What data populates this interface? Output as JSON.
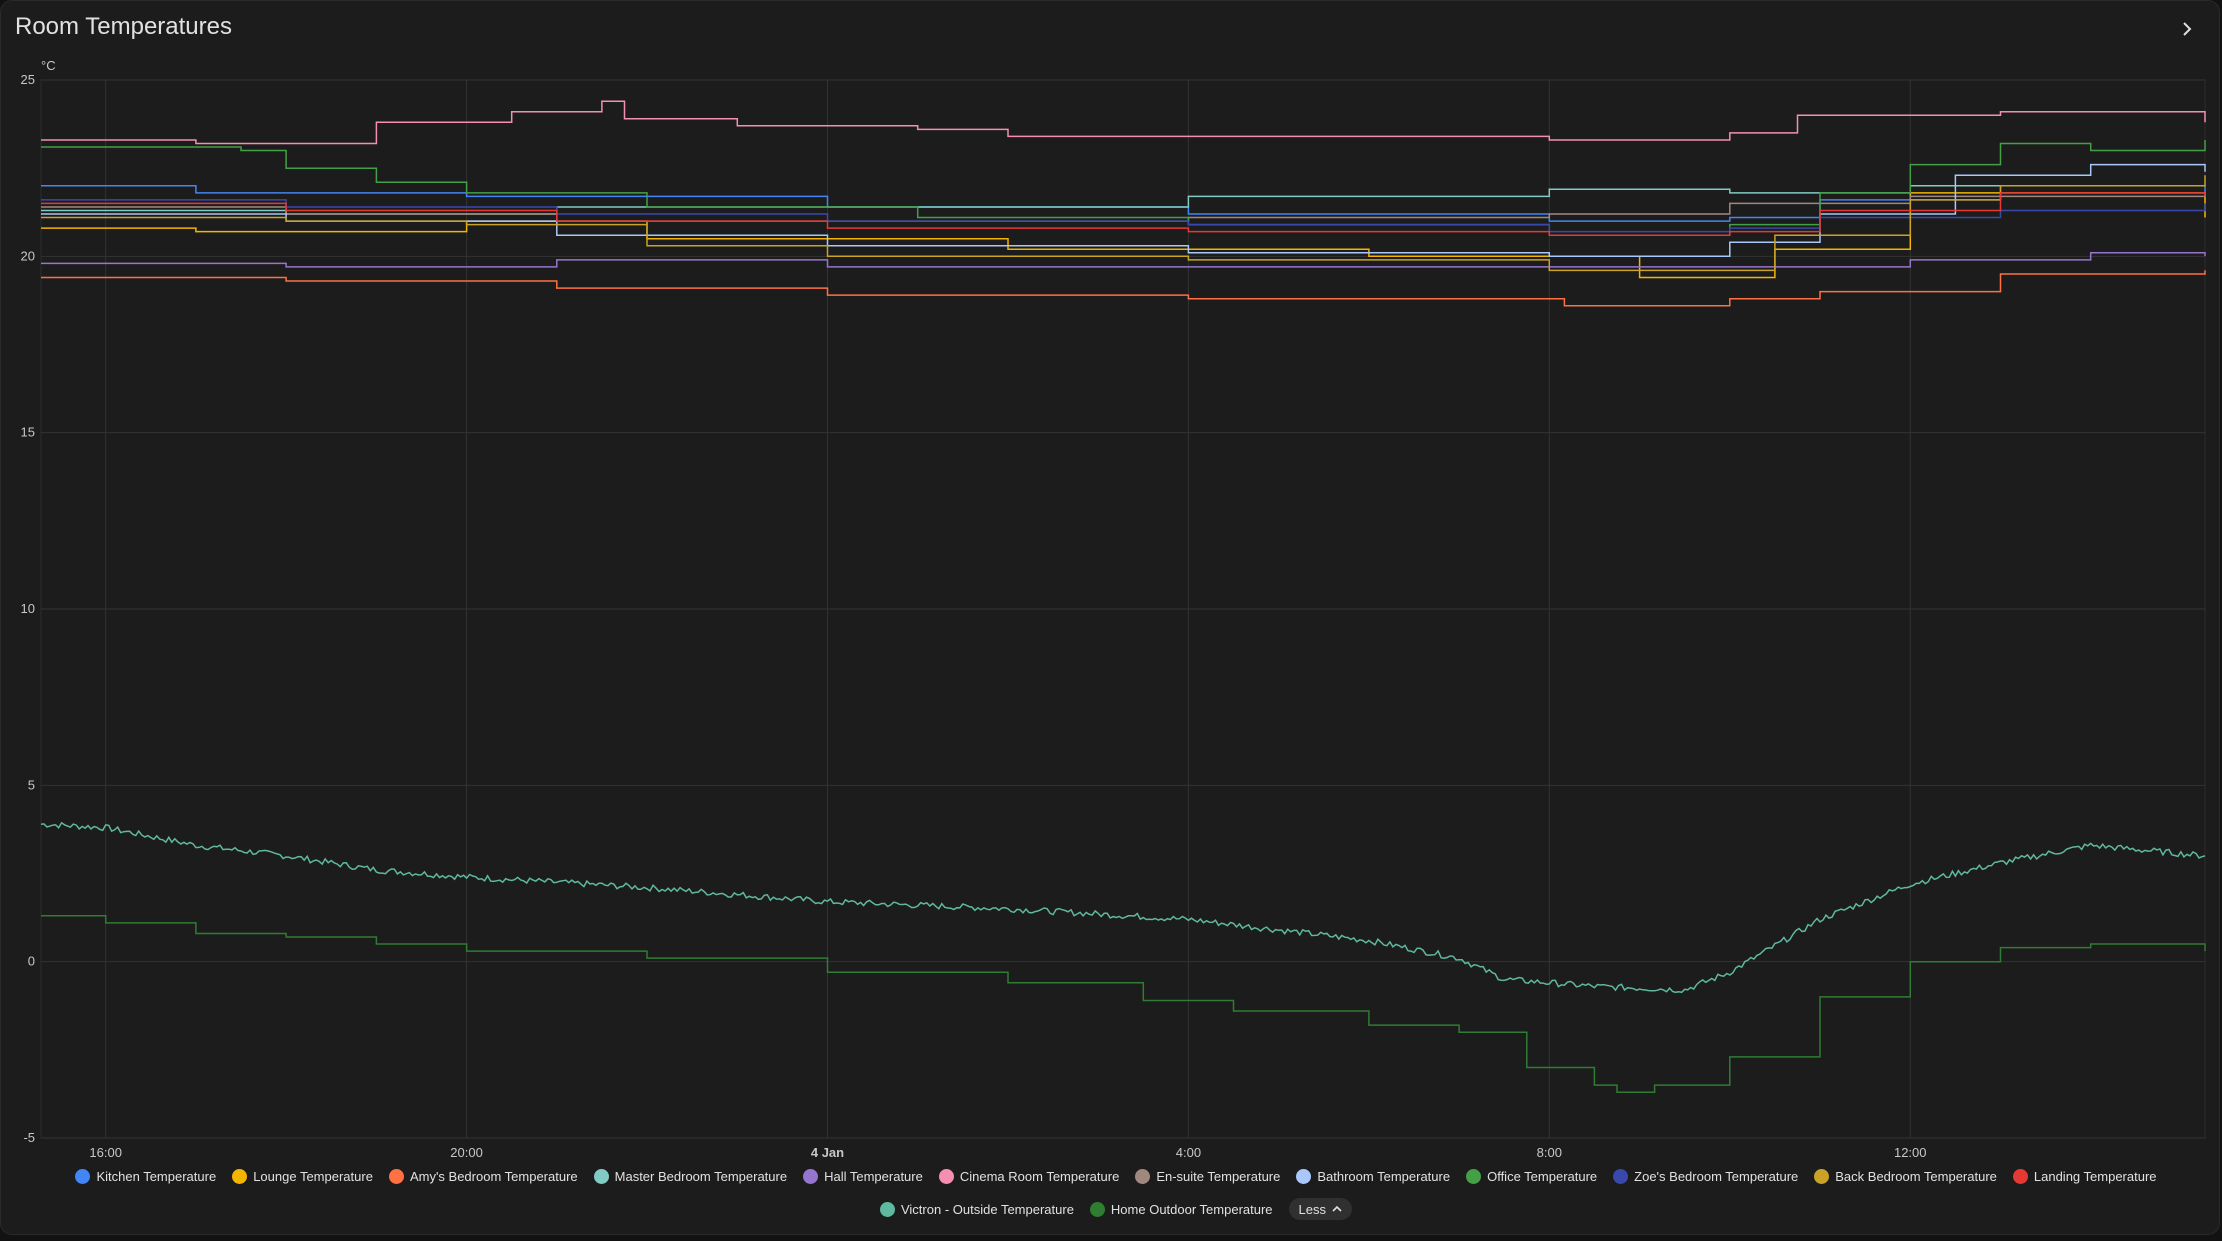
{
  "card": {
    "title": "Room Temperatures",
    "more_icon": "chevron-right-icon",
    "legend_toggle_label": "Less",
    "legend_toggle_icon": "chevron-up-icon"
  },
  "chart_data": {
    "type": "line",
    "step": true,
    "ylabel": "°C",
    "ylim": [
      -5,
      25
    ],
    "yticks": [
      "25",
      "20",
      "15",
      "10",
      "5",
      "0",
      "-5"
    ],
    "xlim": [
      "2024-01-03 15:17",
      "2024-01-04 15:16"
    ],
    "xticks": [
      {
        "t": "2024-01-03 16:00",
        "label": "16:00",
        "bold": false
      },
      {
        "t": "2024-01-03 20:00",
        "label": "20:00",
        "bold": false
      },
      {
        "t": "2024-01-04 00:00",
        "label": "4 Jan",
        "bold": true
      },
      {
        "t": "2024-01-04 04:00",
        "label": "4:00",
        "bold": false
      },
      {
        "t": "2024-01-04 08:00",
        "label": "8:00",
        "bold": false
      },
      {
        "t": "2024-01-04 12:00",
        "label": "12:00",
        "bold": false
      }
    ],
    "grid": true,
    "legend_position": "bottom",
    "series": [
      {
        "name": "Kitchen Temperature",
        "color": "#4285f4",
        "points": [
          [
            "2024-01-03 15:17",
            22.0
          ],
          [
            "2024-01-03 17:00",
            21.8
          ],
          [
            "2024-01-03 20:00",
            21.7
          ],
          [
            "2024-01-04 00:00",
            21.4
          ],
          [
            "2024-01-04 04:00",
            21.2
          ],
          [
            "2024-01-04 08:00",
            21.0
          ],
          [
            "2024-01-04 10:00",
            21.1
          ],
          [
            "2024-01-04 11:00",
            21.6
          ],
          [
            "2024-01-04 13:00",
            22.0
          ],
          [
            "2024-01-04 15:16",
            21.8
          ]
        ]
      },
      {
        "name": "Lounge Temperature",
        "color": "#f4b400",
        "points": [
          [
            "2024-01-03 15:17",
            20.8
          ],
          [
            "2024-01-03 17:00",
            20.7
          ],
          [
            "2024-01-03 20:00",
            21.0
          ],
          [
            "2024-01-03 22:00",
            20.5
          ],
          [
            "2024-01-04 02:00",
            20.2
          ],
          [
            "2024-01-04 06:00",
            20.0
          ],
          [
            "2024-01-04 09:00",
            19.4
          ],
          [
            "2024-01-04 10:30",
            20.2
          ],
          [
            "2024-01-04 12:00",
            21.8
          ],
          [
            "2024-01-04 15:16",
            21.1
          ]
        ]
      },
      {
        "name": "Amy's Bedroom Temperature",
        "color": "#ff7043",
        "points": [
          [
            "2024-01-03 15:17",
            19.4
          ],
          [
            "2024-01-03 18:00",
            19.3
          ],
          [
            "2024-01-03 21:00",
            19.1
          ],
          [
            "2024-01-04 00:00",
            18.9
          ],
          [
            "2024-01-04 04:00",
            18.8
          ],
          [
            "2024-01-04 07:00",
            18.8
          ],
          [
            "2024-01-04 08:10",
            18.6
          ],
          [
            "2024-01-04 10:00",
            18.8
          ],
          [
            "2024-01-04 11:00",
            19.0
          ],
          [
            "2024-01-04 13:00",
            19.5
          ],
          [
            "2024-01-04 15:16",
            19.6
          ]
        ]
      },
      {
        "name": "Master Bedroom Temperature",
        "color": "#80cbc4",
        "points": [
          [
            "2024-01-03 15:17",
            21.3
          ],
          [
            "2024-01-03 18:00",
            21.2
          ],
          [
            "2024-01-03 21:00",
            21.4
          ],
          [
            "2024-01-04 00:00",
            21.4
          ],
          [
            "2024-01-04 04:00",
            21.7
          ],
          [
            "2024-01-04 08:00",
            21.9
          ],
          [
            "2024-01-04 10:00",
            21.8
          ],
          [
            "2024-01-04 12:00",
            22.0
          ],
          [
            "2024-01-04 15:16",
            22.0
          ]
        ]
      },
      {
        "name": "Hall Temperature",
        "color": "#9575cd",
        "points": [
          [
            "2024-01-03 15:17",
            19.8
          ],
          [
            "2024-01-03 18:00",
            19.7
          ],
          [
            "2024-01-03 21:00",
            19.9
          ],
          [
            "2024-01-04 00:00",
            19.7
          ],
          [
            "2024-01-04 04:00",
            19.7
          ],
          [
            "2024-01-04 08:00",
            19.7
          ],
          [
            "2024-01-04 10:00",
            19.7
          ],
          [
            "2024-01-04 12:00",
            19.9
          ],
          [
            "2024-01-04 14:00",
            20.1
          ],
          [
            "2024-01-04 15:16",
            20.0
          ]
        ]
      },
      {
        "name": "Cinema Room Temperature",
        "color": "#f48fb1",
        "points": [
          [
            "2024-01-03 15:17",
            23.3
          ],
          [
            "2024-01-03 17:00",
            23.2
          ],
          [
            "2024-01-03 18:45",
            23.2
          ],
          [
            "2024-01-03 19:00",
            23.8
          ],
          [
            "2024-01-03 20:30",
            24.1
          ],
          [
            "2024-01-03 21:30",
            24.4
          ],
          [
            "2024-01-03 21:45",
            23.9
          ],
          [
            "2024-01-03 23:00",
            23.7
          ],
          [
            "2024-01-04 01:00",
            23.6
          ],
          [
            "2024-01-04 02:00",
            23.4
          ],
          [
            "2024-01-04 06:00",
            23.4
          ],
          [
            "2024-01-04 08:00",
            23.3
          ],
          [
            "2024-01-04 10:00",
            23.5
          ],
          [
            "2024-01-04 10:45",
            24.0
          ],
          [
            "2024-01-04 12:00",
            24.0
          ],
          [
            "2024-01-04 13:00",
            24.1
          ],
          [
            "2024-01-04 15:16",
            23.8
          ]
        ]
      },
      {
        "name": "En-suite Temperature",
        "color": "#a1887f",
        "points": [
          [
            "2024-01-03 15:17",
            21.4
          ],
          [
            "2024-01-03 18:00",
            21.2
          ],
          [
            "2024-01-03 21:00",
            21.0
          ],
          [
            "2024-01-04 00:00",
            21.0
          ],
          [
            "2024-01-04 04:00",
            21.1
          ],
          [
            "2024-01-04 08:00",
            21.2
          ],
          [
            "2024-01-04 10:00",
            21.5
          ],
          [
            "2024-01-04 12:00",
            21.7
          ],
          [
            "2024-01-04 15:16",
            21.8
          ]
        ]
      },
      {
        "name": "Bathroom Temperature",
        "color": "#a8c7fa",
        "points": [
          [
            "2024-01-03 15:17",
            21.2
          ],
          [
            "2024-01-03 18:00",
            21.0
          ],
          [
            "2024-01-03 21:00",
            20.6
          ],
          [
            "2024-01-04 00:00",
            20.3
          ],
          [
            "2024-01-04 04:00",
            20.1
          ],
          [
            "2024-01-04 08:00",
            20.0
          ],
          [
            "2024-01-04 10:00",
            20.4
          ],
          [
            "2024-01-04 11:00",
            21.2
          ],
          [
            "2024-01-04 12:30",
            22.3
          ],
          [
            "2024-01-04 14:00",
            22.6
          ],
          [
            "2024-01-04 15:16",
            22.4
          ]
        ]
      },
      {
        "name": "Office Temperature",
        "color": "#43a047",
        "points": [
          [
            "2024-01-03 15:17",
            23.1
          ],
          [
            "2024-01-03 17:30",
            23.0
          ],
          [
            "2024-01-03 18:00",
            22.5
          ],
          [
            "2024-01-03 19:00",
            22.1
          ],
          [
            "2024-01-03 20:00",
            21.8
          ],
          [
            "2024-01-03 22:00",
            21.4
          ],
          [
            "2024-01-04 01:00",
            21.1
          ],
          [
            "2024-01-04 04:00",
            20.9
          ],
          [
            "2024-01-04 08:00",
            20.6
          ],
          [
            "2024-01-04 10:00",
            20.9
          ],
          [
            "2024-01-04 11:00",
            21.8
          ],
          [
            "2024-01-04 12:00",
            22.6
          ],
          [
            "2024-01-04 13:00",
            23.2
          ],
          [
            "2024-01-04 14:00",
            23.0
          ],
          [
            "2024-01-04 15:16",
            23.3
          ]
        ]
      },
      {
        "name": "Zoe's Bedroom Temperature",
        "color": "#3949ab",
        "points": [
          [
            "2024-01-03 15:17",
            21.6
          ],
          [
            "2024-01-03 18:00",
            21.4
          ],
          [
            "2024-01-03 21:00",
            21.2
          ],
          [
            "2024-01-04 00:00",
            21.0
          ],
          [
            "2024-01-04 04:00",
            20.9
          ],
          [
            "2024-01-04 08:00",
            20.7
          ],
          [
            "2024-01-04 10:00",
            20.8
          ],
          [
            "2024-01-04 11:00",
            21.1
          ],
          [
            "2024-01-04 13:00",
            21.3
          ],
          [
            "2024-01-04 15:16",
            21.5
          ]
        ]
      },
      {
        "name": "Back Bedroom Temperature",
        "color": "#c9a227",
        "points": [
          [
            "2024-01-03 15:17",
            21.1
          ],
          [
            "2024-01-03 18:00",
            21.0
          ],
          [
            "2024-01-03 20:00",
            20.9
          ],
          [
            "2024-01-03 22:00",
            20.3
          ],
          [
            "2024-01-04 00:00",
            20.0
          ],
          [
            "2024-01-04 04:00",
            19.9
          ],
          [
            "2024-01-04 08:00",
            19.6
          ],
          [
            "2024-01-04 09:30",
            19.6
          ],
          [
            "2024-01-04 10:30",
            20.6
          ],
          [
            "2024-01-04 12:00",
            21.6
          ],
          [
            "2024-01-04 13:00",
            22.0
          ],
          [
            "2024-01-04 15:16",
            22.3
          ]
        ]
      },
      {
        "name": "Landing Temperature",
        "color": "#e53935",
        "points": [
          [
            "2024-01-03 15:17",
            21.5
          ],
          [
            "2024-01-03 18:00",
            21.3
          ],
          [
            "2024-01-03 21:00",
            21.0
          ],
          [
            "2024-01-04 00:00",
            20.8
          ],
          [
            "2024-01-04 04:00",
            20.7
          ],
          [
            "2024-01-04 08:00",
            20.6
          ],
          [
            "2024-01-04 10:00",
            20.7
          ],
          [
            "2024-01-04 11:00",
            21.3
          ],
          [
            "2024-01-04 13:00",
            21.8
          ],
          [
            "2024-01-04 15:16",
            21.7
          ]
        ]
      },
      {
        "name": "Victron - Outside Temperature",
        "color": "#5fb8a0",
        "noisy": true,
        "points": [
          [
            "2024-01-03 15:17",
            3.9
          ],
          [
            "2024-01-03 16:00",
            3.8
          ],
          [
            "2024-01-03 17:00",
            3.3
          ],
          [
            "2024-01-03 18:00",
            3.0
          ],
          [
            "2024-01-03 19:00",
            2.6
          ],
          [
            "2024-01-03 20:00",
            2.4
          ],
          [
            "2024-01-03 22:00",
            2.1
          ],
          [
            "2024-01-04 00:00",
            1.7
          ],
          [
            "2024-01-04 02:00",
            1.5
          ],
          [
            "2024-01-04 04:00",
            1.2
          ],
          [
            "2024-01-04 06:00",
            0.6
          ],
          [
            "2024-01-04 07:00",
            0.1
          ],
          [
            "2024-01-04 07:30",
            -0.5
          ],
          [
            "2024-01-04 08:30",
            -0.7
          ],
          [
            "2024-01-04 09:30",
            -0.8
          ],
          [
            "2024-01-04 10:00",
            -0.3
          ],
          [
            "2024-01-04 11:00",
            1.2
          ],
          [
            "2024-01-04 12:00",
            2.2
          ],
          [
            "2024-01-04 13:00",
            2.8
          ],
          [
            "2024-01-04 14:00",
            3.3
          ],
          [
            "2024-01-04 15:16",
            3.0
          ]
        ]
      },
      {
        "name": "Home Outdoor Temperature",
        "color": "#2e7d32",
        "points": [
          [
            "2024-01-03 15:17",
            1.3
          ],
          [
            "2024-01-03 16:00",
            1.1
          ],
          [
            "2024-01-03 17:00",
            0.8
          ],
          [
            "2024-01-03 18:00",
            0.7
          ],
          [
            "2024-01-03 19:00",
            0.5
          ],
          [
            "2024-01-03 20:00",
            0.3
          ],
          [
            "2024-01-03 22:00",
            0.1
          ],
          [
            "2024-01-04 00:00",
            -0.3
          ],
          [
            "2024-01-04 02:00",
            -0.6
          ],
          [
            "2024-01-04 03:30",
            -1.1
          ],
          [
            "2024-01-04 04:30",
            -1.4
          ],
          [
            "2024-01-04 06:00",
            -1.8
          ],
          [
            "2024-01-04 07:00",
            -2.0
          ],
          [
            "2024-01-04 07:45",
            -3.0
          ],
          [
            "2024-01-04 08:30",
            -3.5
          ],
          [
            "2024-01-04 08:45",
            -3.7
          ],
          [
            "2024-01-04 09:10",
            -3.5
          ],
          [
            "2024-01-04 10:00",
            -2.7
          ],
          [
            "2024-01-04 11:00",
            -1.0
          ],
          [
            "2024-01-04 12:00",
            0.0
          ],
          [
            "2024-01-04 13:00",
            0.4
          ],
          [
            "2024-01-04 14:00",
            0.5
          ],
          [
            "2024-01-04 15:16",
            0.3
          ]
        ]
      }
    ]
  }
}
